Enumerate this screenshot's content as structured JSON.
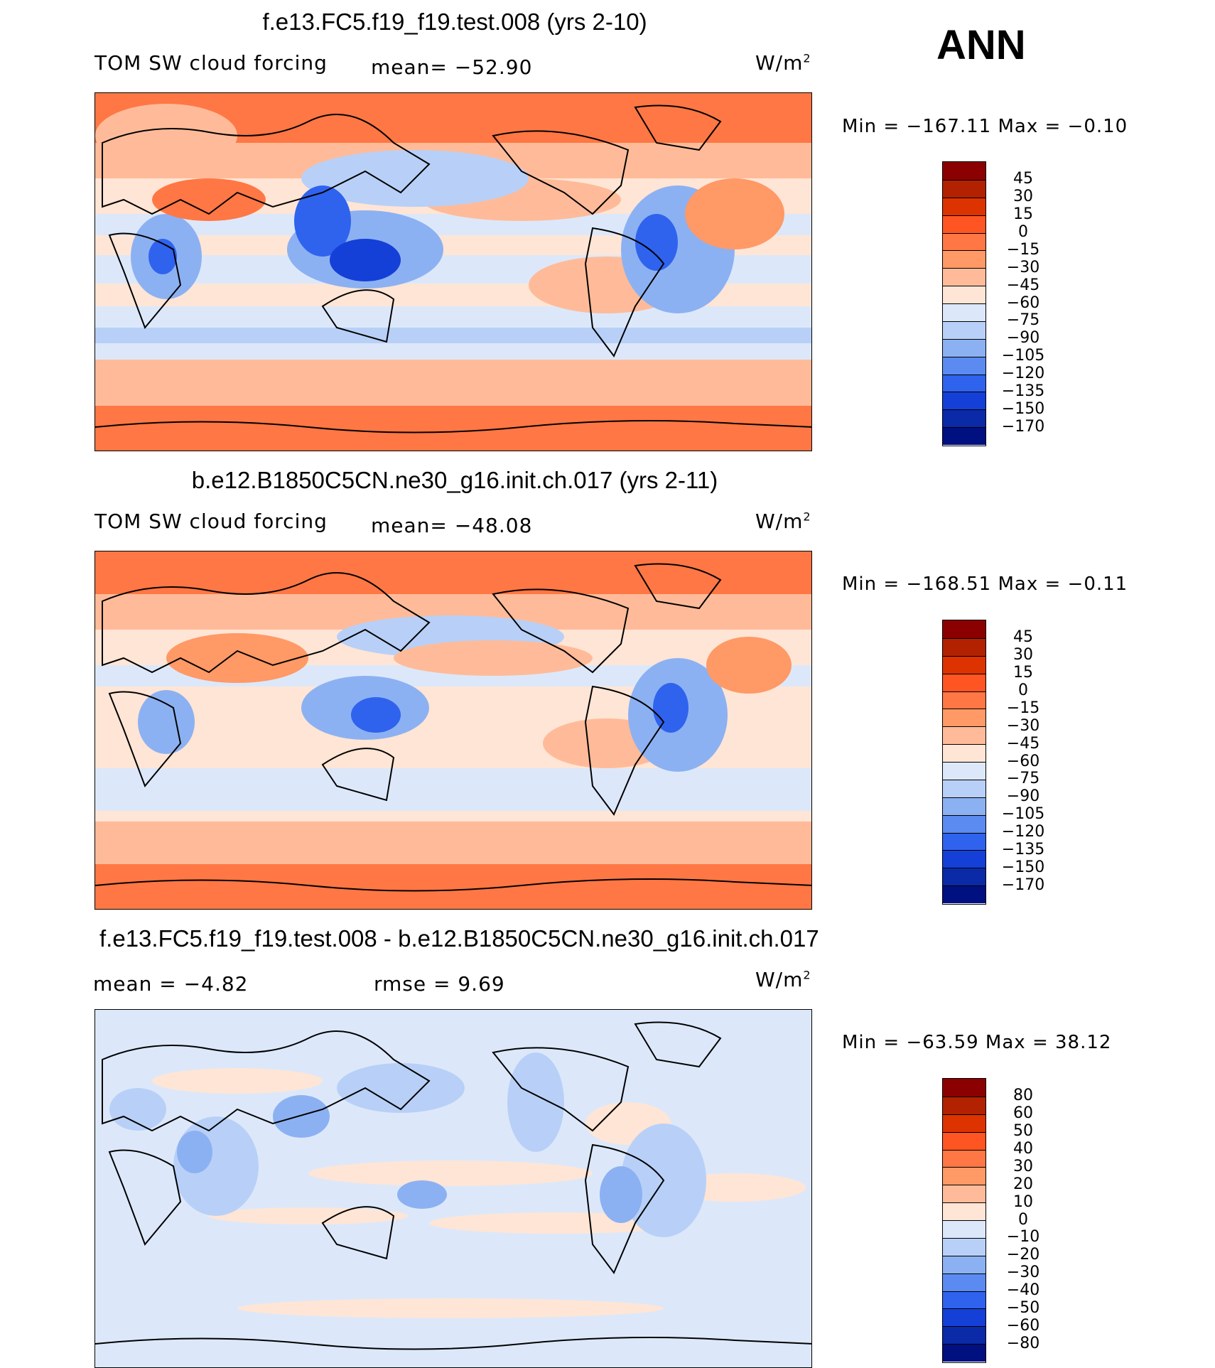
{
  "season": "ANN",
  "panels": [
    {
      "title": "f.e13.FC5.f19_f19.test.008 (yrs 2-10)",
      "left_label": "TOM SW cloud forcing",
      "mid_label": "mean=  −52.90",
      "units": "W/m",
      "units_sup": "2",
      "minmax": "Min  =  −167.11  Max  =   −0.10",
      "colorbar_labels": [
        "45",
        "30",
        "15",
        "0",
        "−15",
        "−30",
        "−45",
        "−60",
        "−75",
        "−90",
        "−105",
        "−120",
        "−135",
        "−150",
        "−170"
      ],
      "bias": "warm"
    },
    {
      "title": "b.e12.B1850C5CN.ne30_g16.init.ch.017 (yrs 2-11)",
      "left_label": "TOM SW cloud forcing",
      "mid_label": "mean=  −48.08",
      "units": "W/m",
      "units_sup": "2",
      "minmax": "Min  =  −168.51  Max  =   −0.11",
      "colorbar_labels": [
        "45",
        "30",
        "15",
        "0",
        "−15",
        "−30",
        "−45",
        "−60",
        "−75",
        "−90",
        "−105",
        "−120",
        "−135",
        "−150",
        "−170"
      ],
      "bias": "warm"
    },
    {
      "title": "f.e13.FC5.f19_f19.test.008 - b.e12.B1850C5CN.ne30_g16.init.ch.017",
      "left_label": "mean  =    −4.82",
      "mid_label": "rmse  =     9.69",
      "units": "W/m",
      "units_sup": "2",
      "minmax": "Min  =  −63.59  Max  =    38.12",
      "colorbar_labels": [
        "80",
        "60",
        "50",
        "40",
        "30",
        "20",
        "10",
        "0",
        "−10",
        "−20",
        "−30",
        "−40",
        "−50",
        "−60",
        "−80"
      ],
      "bias": "diff"
    }
  ],
  "colorbar_colors": [
    "#8b0000",
    "#b22200",
    "#dd3300",
    "#ff5522",
    "#ff7744",
    "#ff9966",
    "#ffbb99",
    "#ffe5d5",
    "#dce8fa",
    "#b8d0f7",
    "#8cb1f2",
    "#5b8bf0",
    "#2f63ee",
    "#1440d8",
    "#0a2aa8",
    "#001080"
  ]
}
